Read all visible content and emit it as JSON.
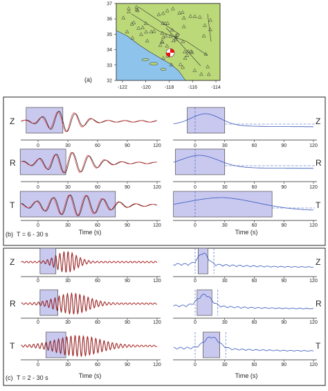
{
  "map": {
    "label": "(a)",
    "xticks": [
      -122,
      -120,
      -118,
      -116,
      -114
    ],
    "yticks": [
      32,
      33,
      34,
      35,
      36,
      37
    ]
  },
  "panels": [
    {
      "label": "(b)",
      "period": "T = 6 - 30 s",
      "xlabel": "Time (s)",
      "components": [
        "Z",
        "R",
        "T"
      ],
      "xticks": [
        0,
        30,
        60,
        90,
        120
      ]
    },
    {
      "label": "(c)",
      "period": "T = 2 - 30 s",
      "xlabel": "Time (s)",
      "components": [
        "Z",
        "R",
        "T"
      ],
      "xticks": [
        0,
        30,
        60,
        90,
        120
      ]
    }
  ]
}
